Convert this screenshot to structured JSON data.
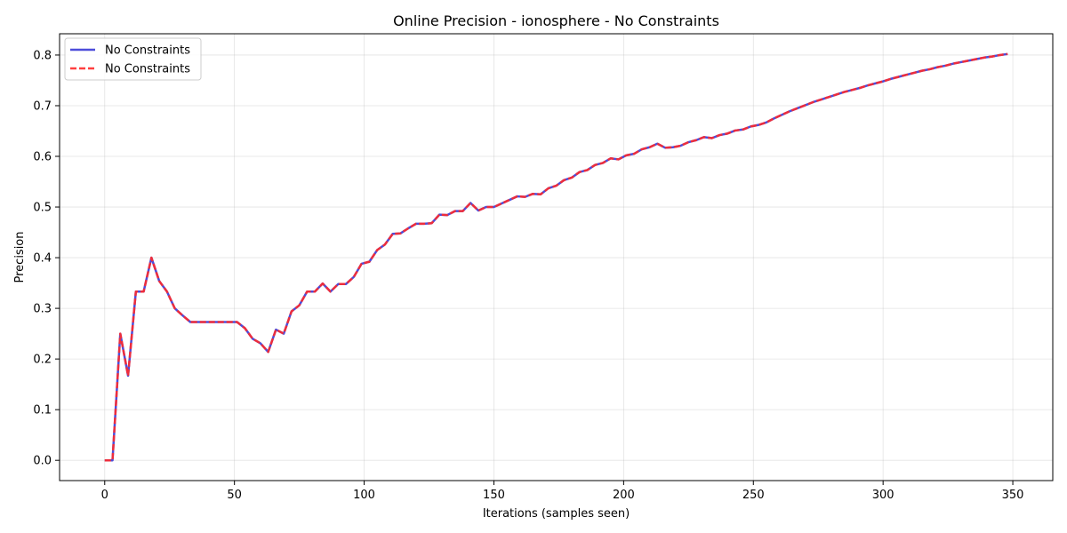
{
  "chart_data": {
    "type": "line",
    "title": "Online Precision - ionosphere - No Constraints",
    "xlabel": "Iterations (samples seen)",
    "ylabel": "Precision",
    "xlim": [
      -17.4,
      365.4
    ],
    "ylim": [
      -0.04,
      0.842
    ],
    "xticks": [
      0,
      50,
      100,
      150,
      200,
      250,
      300,
      350
    ],
    "yticks": [
      0.0,
      0.1,
      0.2,
      0.3,
      0.4,
      0.5,
      0.6,
      0.7,
      0.8
    ],
    "grid": true,
    "legend_position": "top-left",
    "x": [
      0,
      3,
      6,
      9,
      12,
      15,
      18,
      21,
      24,
      27,
      30,
      33,
      36,
      39,
      42,
      45,
      48,
      51,
      54,
      57,
      60,
      63,
      66,
      69,
      72,
      75,
      78,
      81,
      84,
      87,
      90,
      93,
      96,
      99,
      102,
      105,
      108,
      111,
      114,
      117,
      120,
      123,
      126,
      129,
      132,
      135,
      138,
      141,
      144,
      147,
      150,
      153,
      156,
      159,
      162,
      165,
      168,
      171,
      174,
      177,
      180,
      183,
      186,
      189,
      192,
      195,
      198,
      201,
      204,
      207,
      210,
      213,
      216,
      219,
      222,
      225,
      228,
      231,
      234,
      237,
      240,
      243,
      246,
      249,
      252,
      255,
      258,
      261,
      264,
      267,
      270,
      273,
      276,
      279,
      282,
      285,
      288,
      291,
      294,
      297,
      300,
      303,
      306,
      309,
      312,
      315,
      318,
      321,
      324,
      327,
      330,
      333,
      336,
      339,
      342,
      345,
      348
    ],
    "series": [
      {
        "name": "No Constraints",
        "color": "#3a3ad6",
        "style": "solid",
        "values": [
          0.0,
          0.0,
          0.25,
          0.167,
          0.333,
          0.333,
          0.4,
          0.354,
          0.333,
          0.3,
          0.286,
          0.273,
          0.273,
          0.273,
          0.273,
          0.273,
          0.273,
          0.273,
          0.261,
          0.24,
          0.231,
          0.214,
          0.258,
          0.25,
          0.294,
          0.306,
          0.333,
          0.333,
          0.349,
          0.333,
          0.348,
          0.348,
          0.362,
          0.388,
          0.392,
          0.415,
          0.426,
          0.447,
          0.448,
          0.458,
          0.467,
          0.467,
          0.468,
          0.485,
          0.484,
          0.492,
          0.492,
          0.508,
          0.493,
          0.5,
          0.5,
          0.507,
          0.514,
          0.521,
          0.52,
          0.526,
          0.525,
          0.537,
          0.542,
          0.553,
          0.558,
          0.569,
          0.573,
          0.583,
          0.587,
          0.596,
          0.594,
          0.602,
          0.605,
          0.614,
          0.618,
          0.625,
          0.617,
          0.618,
          0.621,
          0.628,
          0.632,
          0.638,
          0.636,
          0.642,
          0.645,
          0.651,
          0.653,
          0.659,
          0.662,
          0.667,
          0.675,
          0.682,
          0.689,
          0.695,
          0.701,
          0.707,
          0.712,
          0.717,
          0.722,
          0.727,
          0.731,
          0.735,
          0.74,
          0.744,
          0.748,
          0.753,
          0.757,
          0.761,
          0.765,
          0.769,
          0.772,
          0.776,
          0.779,
          0.783,
          0.786,
          0.789,
          0.792,
          0.795,
          0.797,
          0.8,
          0.802
        ]
      },
      {
        "name": "No Constraints",
        "color": "#ff2a2a",
        "style": "dashed",
        "values": [
          0.0,
          0.0,
          0.25,
          0.167,
          0.333,
          0.333,
          0.4,
          0.354,
          0.333,
          0.3,
          0.286,
          0.273,
          0.273,
          0.273,
          0.273,
          0.273,
          0.273,
          0.273,
          0.261,
          0.24,
          0.231,
          0.214,
          0.258,
          0.25,
          0.294,
          0.306,
          0.333,
          0.333,
          0.349,
          0.333,
          0.348,
          0.348,
          0.362,
          0.388,
          0.392,
          0.415,
          0.426,
          0.447,
          0.448,
          0.458,
          0.467,
          0.467,
          0.468,
          0.485,
          0.484,
          0.492,
          0.492,
          0.508,
          0.493,
          0.5,
          0.5,
          0.507,
          0.514,
          0.521,
          0.52,
          0.526,
          0.525,
          0.537,
          0.542,
          0.553,
          0.558,
          0.569,
          0.573,
          0.583,
          0.587,
          0.596,
          0.594,
          0.602,
          0.605,
          0.614,
          0.618,
          0.625,
          0.617,
          0.618,
          0.621,
          0.628,
          0.632,
          0.638,
          0.636,
          0.642,
          0.645,
          0.651,
          0.653,
          0.659,
          0.662,
          0.667,
          0.675,
          0.682,
          0.689,
          0.695,
          0.701,
          0.707,
          0.712,
          0.717,
          0.722,
          0.727,
          0.731,
          0.735,
          0.74,
          0.744,
          0.748,
          0.753,
          0.757,
          0.761,
          0.765,
          0.769,
          0.772,
          0.776,
          0.779,
          0.783,
          0.786,
          0.789,
          0.792,
          0.795,
          0.797,
          0.8,
          0.802
        ]
      }
    ]
  }
}
